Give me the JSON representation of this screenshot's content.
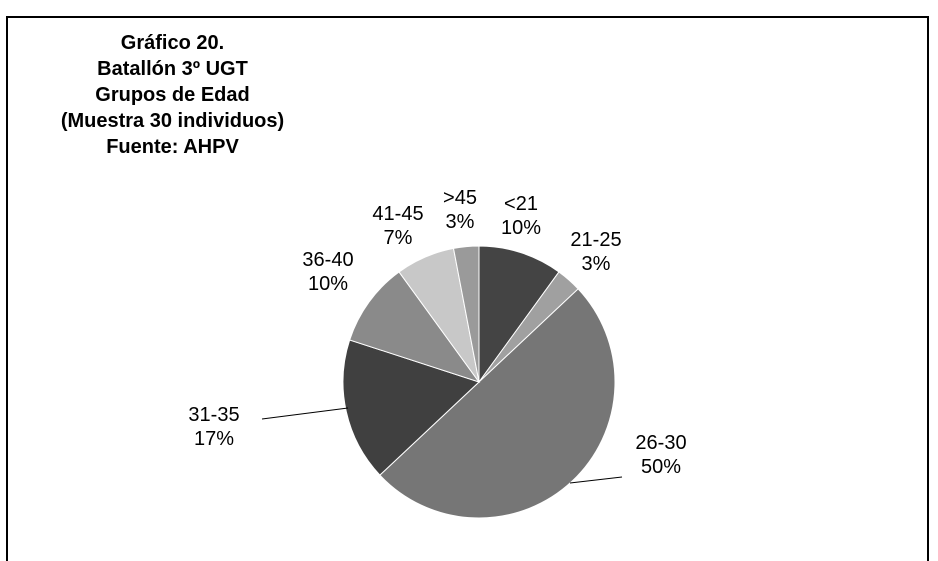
{
  "chart_data": {
    "type": "pie",
    "title_lines": [
      "Gráfico 20.",
      "Batallón 3º UGT",
      "Grupos de Edad",
      "(Muestra 30 individuos)",
      "Fuente: AHPV"
    ],
    "slices": [
      {
        "category": "<21",
        "percent_label": "10%",
        "value": 10,
        "color": "#444444"
      },
      {
        "category": "21-25",
        "percent_label": "3%",
        "value": 3,
        "color": "#a0a0a0"
      },
      {
        "category": "26-30",
        "percent_label": "50%",
        "value": 50,
        "color": "#767676"
      },
      {
        "category": "31-35",
        "percent_label": "17%",
        "value": 17,
        "color": "#404040"
      },
      {
        "category": "36-40",
        "percent_label": "10%",
        "value": 10,
        "color": "#8a8a8a"
      },
      {
        "category": "41-45",
        "percent_label": "7%",
        "value": 7,
        "color": "#c8c8c8"
      },
      {
        "category": ">45",
        "percent_label": "3%",
        "value": 3,
        "color": "#9a9a9a"
      }
    ],
    "legend": "none"
  }
}
